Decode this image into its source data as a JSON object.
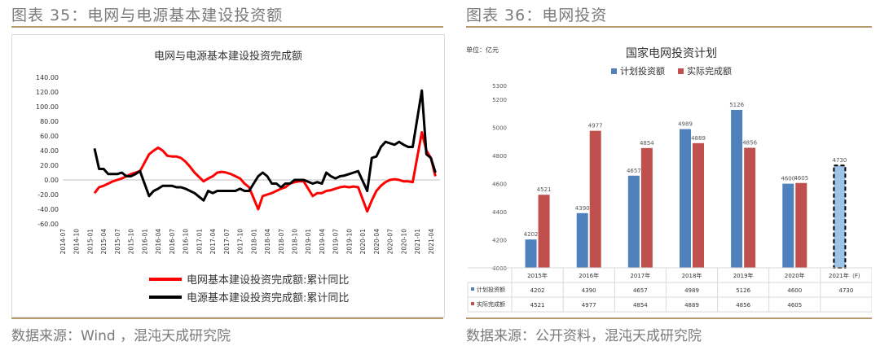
{
  "left_figure": {
    "caption": "图表 35：电网与电源基本建设投资额",
    "source": "数据来源：Wind ，混沌天成研究院"
  },
  "right_figure": {
    "caption": "图表 36：电网投资",
    "source": "数据来源：公开资料，混沌天成研究院",
    "unit_label": "单位：亿元"
  },
  "colors": {
    "grid_line_red": "#ff0000",
    "power_line_black": "#000000",
    "plan_bar_blue": "#4f81bd",
    "actual_bar_red": "#c0504d",
    "rule_gold": "#b59a6c",
    "caption_gray": "#7a7a7a"
  },
  "chart_data": [
    {
      "type": "line",
      "title": "电网与电源基本建设投资完成额",
      "xlabel": "",
      "ylabel": "",
      "ylim": [
        -60,
        140
      ],
      "yticks": [
        "140.00",
        "120.00",
        "100.00",
        "80.00",
        "60.00",
        "40.00",
        "20.00",
        "0.00",
        "-20.00",
        "-40.00",
        "-60.00"
      ],
      "xtick_labels": [
        "2014-07",
        "2014-10",
        "2015-01",
        "2015-04",
        "2015-07",
        "2015-10",
        "2016-01",
        "2016-04",
        "2016-07",
        "2016-10",
        "2017-01",
        "2017-04",
        "2017-07",
        "2017-10",
        "2018-01",
        "2018-04",
        "2018-07",
        "2018-10",
        "2019-01",
        "2019-04",
        "2019-07",
        "2019-10",
        "2020-01",
        "2020-04",
        "2020-07",
        "2020-10",
        "2021-01",
        "2021-04"
      ],
      "x": [
        "2015-02",
        "2015-03",
        "2015-04",
        "2015-05",
        "2015-06",
        "2015-07",
        "2015-08",
        "2015-09",
        "2015-10",
        "2015-11",
        "2015-12",
        "2016-02",
        "2016-03",
        "2016-04",
        "2016-05",
        "2016-06",
        "2016-07",
        "2016-08",
        "2016-09",
        "2016-10",
        "2016-11",
        "2016-12",
        "2017-02",
        "2017-03",
        "2017-04",
        "2017-05",
        "2017-06",
        "2017-07",
        "2017-08",
        "2017-09",
        "2017-10",
        "2017-11",
        "2017-12",
        "2018-02",
        "2018-03",
        "2018-04",
        "2018-05",
        "2018-06",
        "2018-07",
        "2018-08",
        "2018-09",
        "2018-10",
        "2018-11",
        "2018-12",
        "2019-02",
        "2019-03",
        "2019-04",
        "2019-05",
        "2019-06",
        "2019-07",
        "2019-08",
        "2019-09",
        "2019-10",
        "2019-11",
        "2019-12",
        "2020-02",
        "2020-03",
        "2020-04",
        "2020-05",
        "2020-06",
        "2020-07",
        "2020-08",
        "2020-09",
        "2020-10",
        "2020-11",
        "2020-12",
        "2021-02",
        "2021-03",
        "2021-04",
        "2021-05"
      ],
      "series": [
        {
          "name": "电网基本建设投资完成额:累计同比",
          "color": "#ff0000",
          "values": [
            -18,
            -10,
            -8,
            -5,
            -2,
            0,
            2,
            5,
            8,
            10,
            12,
            35,
            40,
            44,
            40,
            33,
            32,
            32,
            30,
            25,
            18,
            10,
            -2,
            2,
            5,
            10,
            11,
            10,
            8,
            5,
            2,
            -5,
            -10,
            -40,
            -22,
            -20,
            -18,
            -15,
            -12,
            -10,
            -5,
            -3,
            -2,
            -2,
            -22,
            -18,
            -18,
            -15,
            -14,
            -12,
            -10,
            -9,
            -10,
            -9,
            -10,
            -43,
            -28,
            -15,
            -8,
            -3,
            0,
            1,
            0,
            -2,
            -2,
            -3,
            65,
            40,
            30,
            5
          ]
        },
        {
          "name": "电源基本建设投资完成额:累计同比",
          "color": "#000000",
          "values": [
            43,
            15,
            15,
            8,
            8,
            8,
            10,
            5,
            5,
            8,
            12,
            -22,
            -15,
            -12,
            -8,
            -8,
            -8,
            -10,
            -10,
            -12,
            -15,
            -18,
            -28,
            -15,
            -18,
            -15,
            -15,
            -15,
            -15,
            -15,
            -12,
            -15,
            -15,
            5,
            10,
            5,
            -5,
            -5,
            -10,
            -5,
            -5,
            0,
            0,
            0,
            -5,
            -3,
            -5,
            10,
            5,
            2,
            5,
            6,
            8,
            10,
            12,
            -15,
            30,
            32,
            45,
            52,
            50,
            48,
            52,
            48,
            45,
            45,
            122,
            35,
            30,
            10
          ]
        }
      ],
      "legend_position": "bottom",
      "grid": false
    },
    {
      "type": "bar",
      "title": "国家电网投资计划",
      "ylim": [
        4000,
        5300
      ],
      "yticks": [
        "5300",
        "5200",
        "5000",
        "4800",
        "4600",
        "4400",
        "4200",
        "4000"
      ],
      "categories": [
        "2015年",
        "2016年",
        "2017年",
        "2018年",
        "2019年",
        "2020年",
        "2021年（F）"
      ],
      "series": [
        {
          "name": "计划投资额",
          "color": "#4f81bd",
          "values": [
            4202,
            4390,
            4657,
            4989,
            5126,
            4600,
            4730
          ]
        },
        {
          "name": "实际完成额",
          "color": "#c0504d",
          "values": [
            4521,
            4977,
            4854,
            4889,
            4856,
            4605,
            null
          ]
        }
      ],
      "value_labels": {
        "plan": [
          "4202",
          "4390",
          "4657",
          "4989",
          "5126",
          "4600",
          "4730"
        ],
        "actual": [
          "4521",
          "4977",
          "4854",
          "4889",
          "4856",
          "4605",
          ""
        ]
      },
      "forecast_note": "2021年计划额为预测值（虚线框）",
      "legend_position": "top",
      "grid": false
    }
  ]
}
